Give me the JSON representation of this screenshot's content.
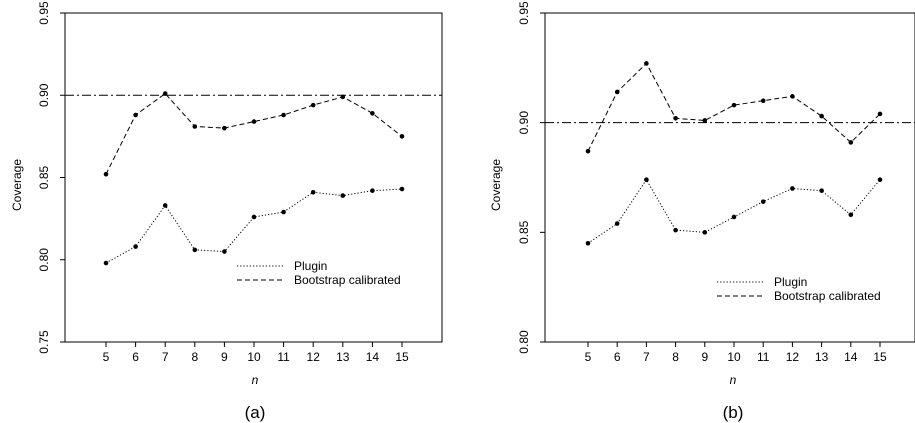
{
  "chart_data": [
    {
      "type": "line",
      "caption": "(a)",
      "xlabel": "n",
      "ylabel": "Coverage",
      "categories": [
        5,
        6,
        7,
        8,
        9,
        10,
        11,
        12,
        13,
        14,
        15
      ],
      "x_tick_labels": [
        "5",
        "6",
        "7",
        "8",
        "9",
        "10",
        "11",
        "12",
        "13",
        "14",
        "15"
      ],
      "ylim": [
        0.75,
        0.95
      ],
      "y_ticks": [
        0.75,
        0.8,
        0.85,
        0.9,
        0.95
      ],
      "y_tick_labels": [
        "0.75",
        "0.80",
        "0.85",
        "0.90",
        "0.95"
      ],
      "reference_line": 0.9,
      "legend_position": "center-right",
      "grid": false,
      "series": [
        {
          "name": "Plugin",
          "style": "dotted",
          "values": [
            0.798,
            0.808,
            0.833,
            0.806,
            0.805,
            0.826,
            0.829,
            0.841,
            0.839,
            0.842,
            0.843
          ]
        },
        {
          "name": "Bootstrap calibrated",
          "style": "dashed",
          "values": [
            0.852,
            0.888,
            0.901,
            0.881,
            0.88,
            0.884,
            0.888,
            0.894,
            0.899,
            0.889,
            0.875
          ]
        }
      ]
    },
    {
      "type": "line",
      "caption": "(b)",
      "xlabel": "n",
      "ylabel": "Coverage",
      "categories": [
        5,
        6,
        7,
        8,
        9,
        10,
        11,
        12,
        13,
        14,
        15
      ],
      "x_tick_labels": [
        "5",
        "6",
        "7",
        "8",
        "9",
        "10",
        "11",
        "12",
        "13",
        "14",
        "15"
      ],
      "ylim": [
        0.8,
        0.95
      ],
      "y_ticks": [
        0.8,
        0.85,
        0.9,
        0.95
      ],
      "y_tick_labels": [
        "0.80",
        "0.85",
        "0.90",
        "0.95"
      ],
      "reference_line": 0.9,
      "legend_position": "bottom-right",
      "grid": false,
      "series": [
        {
          "name": "Plugin",
          "style": "dotted",
          "values": [
            0.845,
            0.854,
            0.874,
            0.851,
            0.85,
            0.857,
            0.864,
            0.87,
            0.869,
            0.858,
            0.874
          ]
        },
        {
          "name": "Bootstrap calibrated",
          "style": "dashed",
          "values": [
            0.887,
            0.914,
            0.927,
            0.902,
            0.901,
            0.908,
            0.91,
            0.912,
            0.903,
            0.891,
            0.904
          ]
        }
      ]
    }
  ]
}
